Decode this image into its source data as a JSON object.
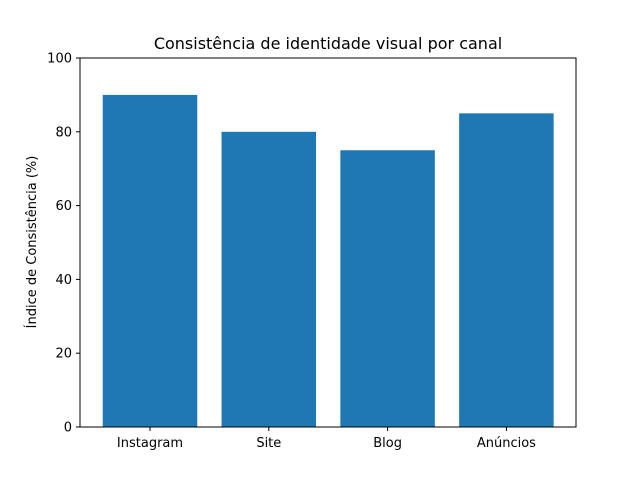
{
  "chart_data": {
    "type": "bar",
    "title": "Consistência de identidade visual por canal",
    "xlabel": "",
    "ylabel": "Índice de Consistência (%)",
    "categories": [
      "Instagram",
      "Site",
      "Blog",
      "Anúncios"
    ],
    "values": [
      90,
      80,
      75,
      85
    ],
    "ylim": [
      0,
      100
    ],
    "yticks": [
      0,
      20,
      40,
      60,
      80,
      100
    ],
    "grid": false,
    "bar_color": "#1f77b4"
  }
}
